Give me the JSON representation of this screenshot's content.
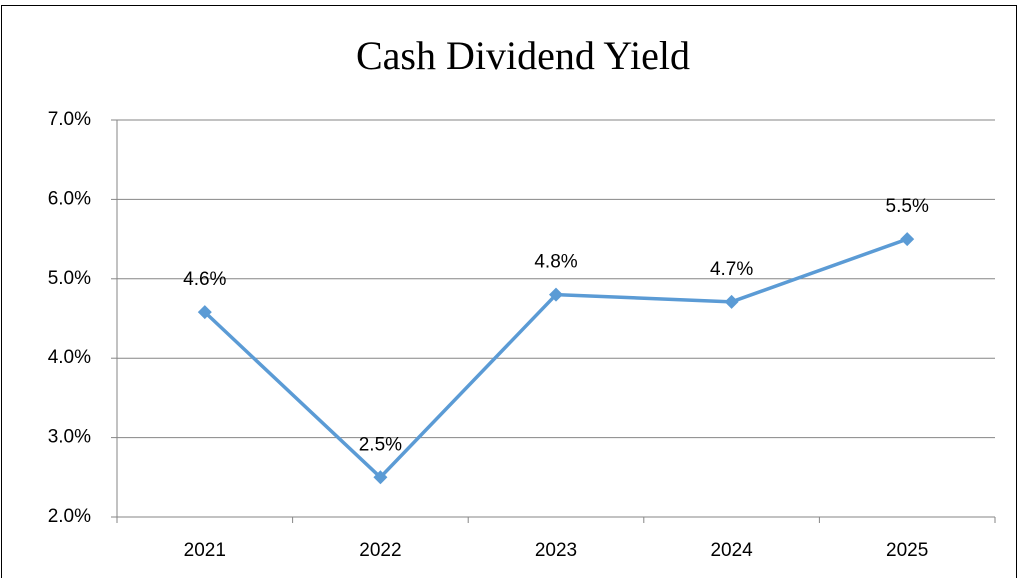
{
  "chart_data": {
    "type": "line",
    "title": "Cash Dividend Yield",
    "categories": [
      "2021",
      "2022",
      "2023",
      "2024",
      "2025"
    ],
    "series": [
      {
        "name": "Cash Dividend Yield",
        "color": "#5b9bd5",
        "values": [
          4.58,
          2.5,
          4.8,
          4.71,
          5.5
        ],
        "value_labels": [
          "4.6%",
          "2.5%",
          "4.8%",
          "4.7%",
          "5.5%"
        ]
      }
    ],
    "ylim": [
      2,
      7
    ],
    "yticks": [
      {
        "value": 2,
        "label": "2.0%"
      },
      {
        "value": 3,
        "label": "3.0%"
      },
      {
        "value": 4,
        "label": "4.0%"
      },
      {
        "value": 5,
        "label": "5.0%"
      },
      {
        "value": 6,
        "label": "6.0%"
      },
      {
        "value": 7,
        "label": "7.0%"
      }
    ],
    "grid": true,
    "legend": false
  }
}
